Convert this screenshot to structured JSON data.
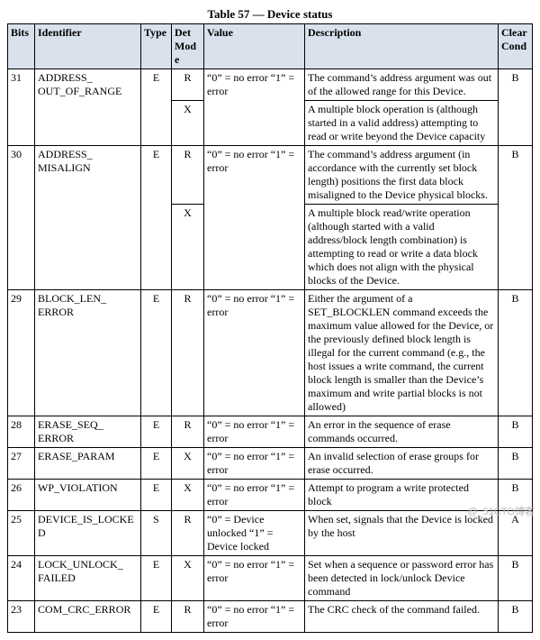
{
  "title": "Table 57 — Device status",
  "headers": {
    "bits": "Bits",
    "identifier": "Identifier",
    "type": "Type",
    "det_mode": "Det Mode",
    "value": "Value",
    "description": "Description",
    "clear_cond": "Clear Cond"
  },
  "rows": [
    {
      "bits": "31",
      "identifier": "ADDRESS_ OUT_OF_RANGE",
      "type": "E",
      "clear": "B",
      "sub": [
        {
          "det": "R",
          "value": "“0” = no error “1” = error",
          "desc": "The command’s address argument was out of the allowed range for this Device."
        },
        {
          "det": "X",
          "value": "",
          "desc": "A multiple block operation is (although started in a valid address) attempting to read or write beyond the Device capacity"
        }
      ]
    },
    {
      "bits": "30",
      "identifier": "ADDRESS_ MISALIGN",
      "type": "E",
      "clear": "B",
      "sub": [
        {
          "det": "R",
          "value": "“0” = no error “1” = error",
          "desc": "The command’s address argument (in accordance with the currently set block length) positions the first data block misaligned to the Device physical blocks."
        },
        {
          "det": "X",
          "value": "",
          "desc": "A multiple block read/write operation (although started with a valid address/block length combination) is attempting to read or write a data block which does not align with the physical blocks of the Device."
        }
      ]
    },
    {
      "bits": "29",
      "identifier": "BLOCK_LEN_ ERROR",
      "type": "E",
      "clear": "B",
      "sub": [
        {
          "det": "R",
          "value": "“0” = no error “1” = error",
          "desc": "Either the argument of a SET_BLOCKLEN command exceeds the maximum value allowed for the Device, or the previously defined block length is illegal for the current command (e.g., the host issues a write command, the current block length is smaller than the Device’s maximum and write partial blocks is not allowed)"
        }
      ]
    },
    {
      "bits": "28",
      "identifier": "ERASE_SEQ_ ERROR",
      "type": "E",
      "clear": "B",
      "sub": [
        {
          "det": "R",
          "value": "“0” = no error “1” = error",
          "desc": "An error in the sequence of erase commands occurred."
        }
      ]
    },
    {
      "bits": "27",
      "identifier": "ERASE_PARAM",
      "type": "E",
      "clear": "B",
      "sub": [
        {
          "det": "X",
          "value": "“0” = no error “1” = error",
          "desc": "An invalid selection of erase groups for erase occurred."
        }
      ]
    },
    {
      "bits": "26",
      "identifier": "WP_VIOLATION",
      "type": "E",
      "clear": "B",
      "sub": [
        {
          "det": "X",
          "value": "“0” = no error “1” = error",
          "desc": "Attempt to program a write protected block"
        }
      ]
    },
    {
      "bits": "25",
      "identifier": "DEVICE_IS_LOCKED",
      "type": "S",
      "clear": "A",
      "sub": [
        {
          "det": "R",
          "value": "“0” = Device unlocked “1” = Device locked",
          "desc": "When set, signals that the Device is locked by the host"
        }
      ]
    },
    {
      "bits": "24",
      "identifier": "LOCK_UNLOCK_ FAILED",
      "type": "E",
      "clear": "B",
      "sub": [
        {
          "det": "X",
          "value": "“0” = no error “1” = error",
          "desc": "Set when a sequence or password error has been detected in lock/unlock Device command"
        }
      ]
    },
    {
      "bits": "23",
      "identifier": "COM_CRC_ERROR",
      "type": "E",
      "clear": "B",
      "sub": [
        {
          "det": "R",
          "value": "“0” = no error “1” = error",
          "desc": "The CRC check of the command failed."
        }
      ]
    }
  ],
  "watermark": "@_51CTO博客"
}
